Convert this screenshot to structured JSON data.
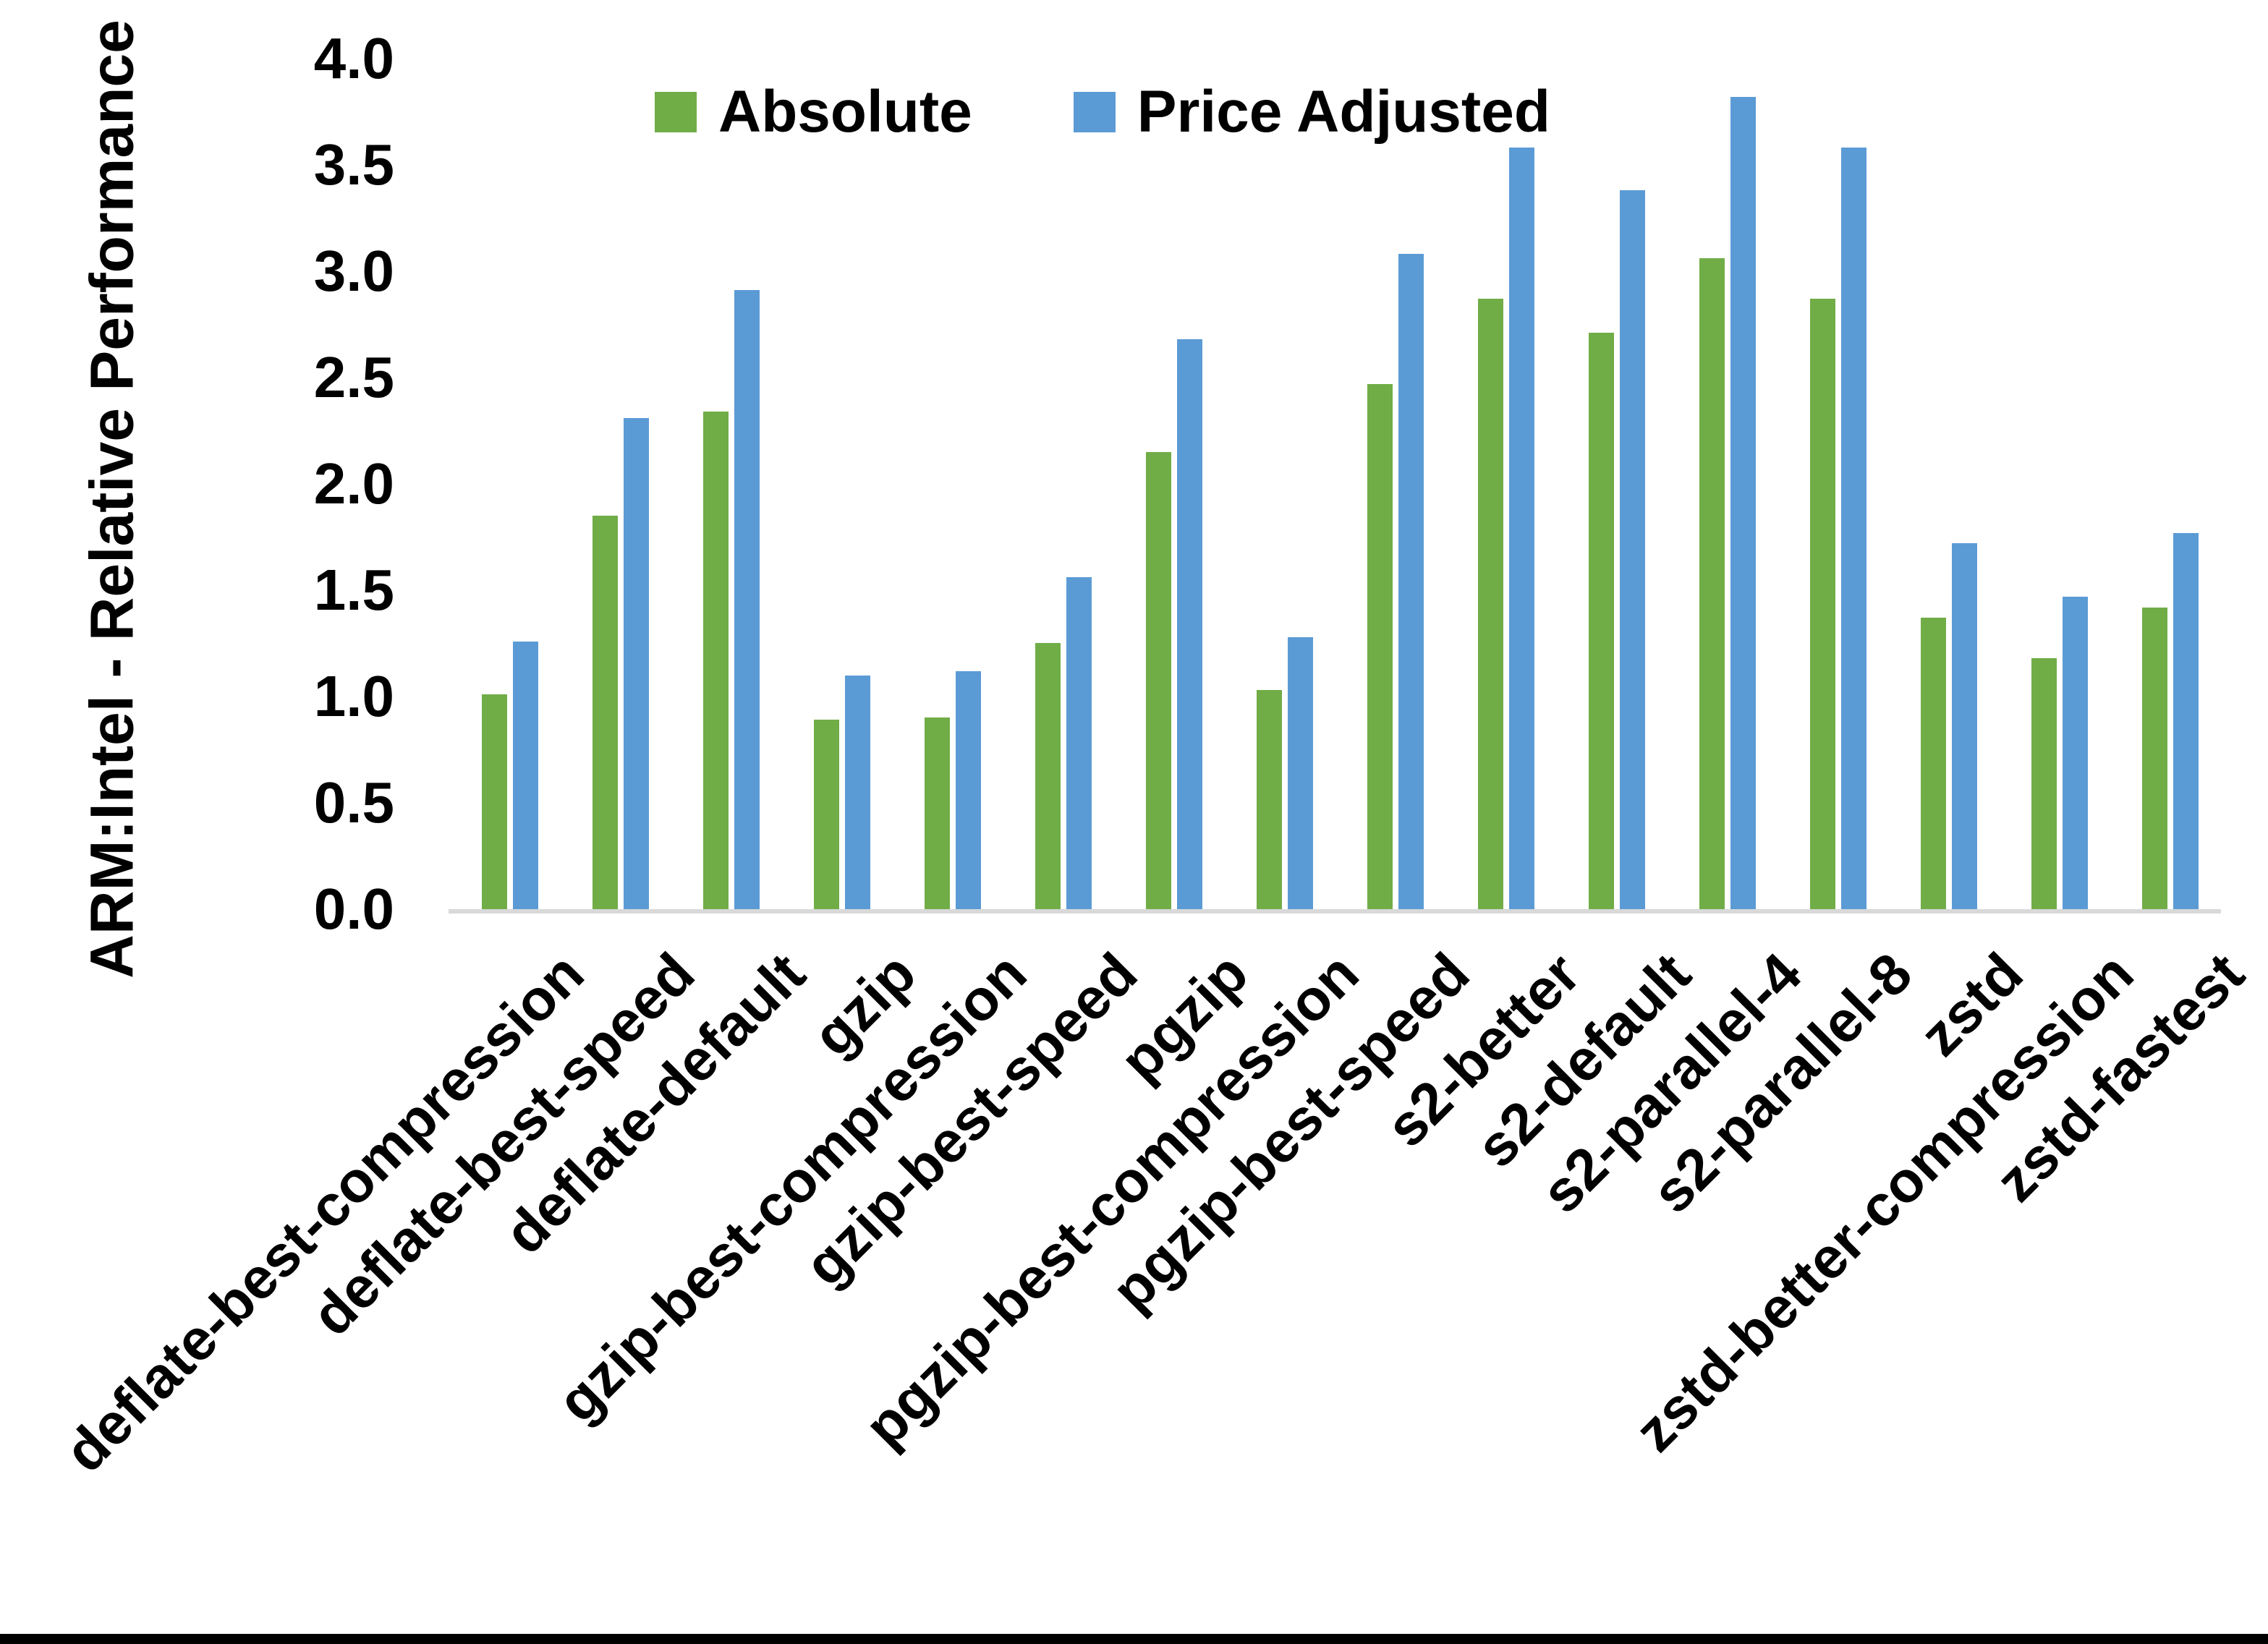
{
  "page": {
    "background": "#FFFFFF",
    "bottom_bar_color": "#000000"
  },
  "chart_data": {
    "type": "bar",
    "title": "",
    "xlabel": "",
    "ylabel": "ARM:Intel - Relative Performance",
    "ylim": [
      0.0,
      4.0
    ],
    "ytick_step": 0.5,
    "yticks": [
      "0.0",
      "0.5",
      "1.0",
      "1.5",
      "2.0",
      "2.5",
      "3.0",
      "3.5",
      "4.0"
    ],
    "grid": false,
    "legend_position": "top-center",
    "axis_line_color": "#D9D9D9",
    "categories": [
      "deflate-best-compression",
      "deflate-best-speed",
      "deflate-default",
      "gzip",
      "gzip-best-compression",
      "gzip-best-speed",
      "pgzip",
      "pgzip-best-compression",
      "pgzip-best-speed",
      "s2-better",
      "s2-default",
      "s2-parallel-4",
      "s2-parallel-8",
      "zstd",
      "zstd-better-compression",
      "zstd-fastest"
    ],
    "series": [
      {
        "name": "Absolute",
        "color": "#70AD47",
        "values": [
          1.01,
          1.85,
          2.34,
          0.89,
          0.9,
          1.25,
          2.15,
          1.03,
          2.47,
          2.87,
          2.71,
          3.06,
          2.87,
          1.37,
          1.18,
          1.42
        ]
      },
      {
        "name": "Price Adjusted",
        "color": "#5B9BD5",
        "values": [
          1.26,
          2.31,
          2.91,
          1.1,
          1.12,
          1.56,
          2.68,
          1.28,
          3.08,
          3.58,
          3.38,
          3.82,
          3.58,
          1.72,
          1.47,
          1.77
        ]
      }
    ]
  }
}
